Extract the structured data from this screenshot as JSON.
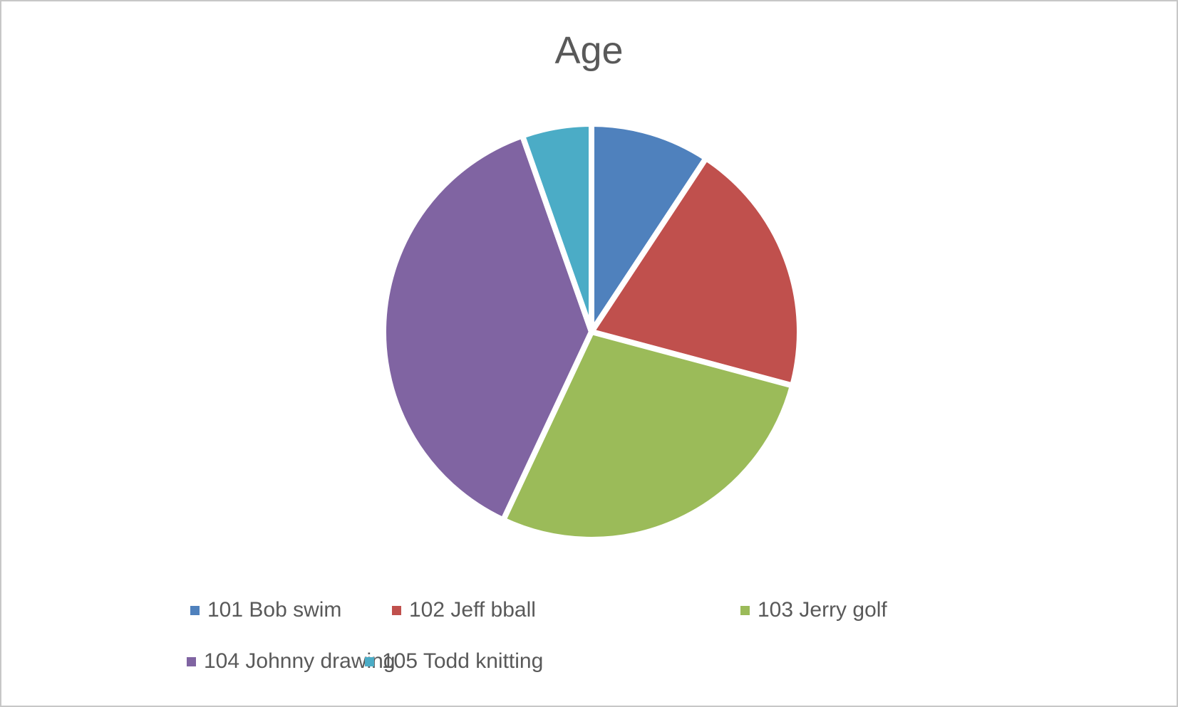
{
  "title": "Age",
  "chart_data": {
    "type": "pie",
    "title": "Age",
    "legend_position": "bottom",
    "rotation_start": "12-o-clock",
    "direction": "clockwise",
    "slices": [
      {
        "label": "101 Bob swim",
        "color": "#4F81BD",
        "start_deg": 0,
        "end_deg": 33.4,
        "span_deg": 33.4,
        "value_pct": 9.3
      },
      {
        "label": "102 Jeff bball",
        "color": "#C0504D",
        "start_deg": 33.4,
        "end_deg": 105.0,
        "span_deg": 71.6,
        "value_pct": 19.9
      },
      {
        "label": "103 Jerry golf",
        "color": "#9BBB59",
        "start_deg": 105.0,
        "end_deg": 205.1,
        "span_deg": 100.1,
        "value_pct": 27.8
      },
      {
        "label": "104 Johnny drawing",
        "color": "#8064A2",
        "start_deg": 205.1,
        "end_deg": 340.6,
        "span_deg": 135.5,
        "value_pct": 37.6
      },
      {
        "label": "105 Todd knitting",
        "color": "#4BACC6",
        "start_deg": 340.6,
        "end_deg": 360.0,
        "span_deg": 19.4,
        "value_pct": 5.4
      }
    ]
  },
  "styles": {
    "title_color": "#595959",
    "legend_text_color": "#595959",
    "separator_color": "#FFFFFF",
    "border_color": "#C7C7C7"
  }
}
